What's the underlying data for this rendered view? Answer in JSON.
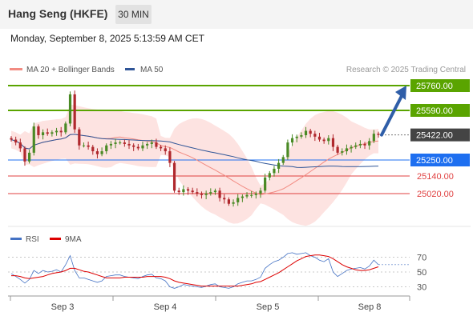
{
  "header": {
    "title": "Hang Seng (HKFE)",
    "timeframe_label": "30 MIN",
    "datetime": "Monday, September 8, 2025 5:13:59 AM CET"
  },
  "chart_data": [
    {
      "type": "line",
      "panel": "price",
      "title": "",
      "x_tick_labels": [
        "Sep 3",
        "Sep 4",
        "Sep 5",
        "Sep 8"
      ],
      "legend": [
        {
          "name": "MA 20 + Bollinger Bands",
          "color": "#f28b82"
        },
        {
          "name": "MA 50",
          "color": "#2f5597"
        }
      ],
      "watermark": "Research © 2025 Trading Central",
      "levels": [
        {
          "value": 25760.0,
          "label": "25760.00",
          "role": "resistance",
          "color": "#5aa400"
        },
        {
          "value": 25590.0,
          "label": "25590.00",
          "role": "resistance",
          "color": "#5aa400"
        },
        {
          "value": 25422.0,
          "label": "25422.00",
          "role": "last-price",
          "color": "#333333"
        },
        {
          "value": 25250.0,
          "label": "25250.00",
          "role": "pivot",
          "color": "#1e6ff0"
        },
        {
          "value": 25140.0,
          "label": "25140.00",
          "role": "support",
          "color": "#e04040"
        },
        {
          "value": 25020.0,
          "label": "25020.00",
          "role": "support",
          "color": "#e04040"
        }
      ],
      "candles_close": [
        25390,
        25370,
        25330,
        25240,
        25300,
        25480,
        25420,
        25440,
        25430,
        25440,
        25450,
        25440,
        25500,
        25700,
        25460,
        25350,
        25350,
        25340,
        25310,
        25290,
        25310,
        25350,
        25360,
        25370,
        25370,
        25360,
        25350,
        25340,
        25330,
        25350,
        25360,
        25370,
        25340,
        25330,
        25310,
        25230,
        25040,
        25030,
        25050,
        25040,
        25030,
        25020,
        25010,
        25020,
        25030,
        25040,
        24990,
        24980,
        24950,
        24960,
        24990,
        25000,
        25010,
        25010,
        25020,
        25040,
        25130,
        25160,
        25190,
        25230,
        25270,
        25370,
        25400,
        25410,
        25420,
        25450,
        25430,
        25410,
        25390,
        25380,
        25400,
        25340,
        25300,
        25310,
        25330,
        25340,
        25350,
        25360,
        25350,
        25380,
        25430,
        25422
      ],
      "arrow_target": 25760.0
    },
    {
      "type": "line",
      "panel": "rsi",
      "legend": [
        {
          "name": "RSI",
          "color": "#4472c4"
        },
        {
          "name": "9MA",
          "color": "#dd0000"
        }
      ],
      "y_tick_labels": [
        "70",
        "50",
        "30"
      ],
      "reference_levels": [
        70,
        50,
        30
      ],
      "rsi": [
        48,
        44,
        40,
        35,
        40,
        52,
        48,
        52,
        50,
        51,
        53,
        50,
        60,
        72,
        52,
        42,
        42,
        40,
        38,
        36,
        38,
        44,
        45,
        46,
        46,
        44,
        43,
        42,
        41,
        44,
        46,
        47,
        42,
        41,
        38,
        30,
        28,
        30,
        33,
        32,
        31,
        30,
        29,
        31,
        33,
        34,
        30,
        29,
        28,
        30,
        34,
        36,
        38,
        38,
        40,
        43,
        55,
        60,
        64,
        66,
        70,
        75,
        76,
        74,
        75,
        76,
        72,
        70,
        66,
        64,
        68,
        50,
        44,
        48,
        52,
        54,
        55,
        56,
        54,
        58,
        66,
        60
      ],
      "ma9": [
        45,
        45,
        44,
        42,
        41,
        42,
        43,
        44,
        46,
        48,
        49,
        50,
        52,
        55,
        55,
        53,
        51,
        50,
        48,
        46,
        44,
        42,
        42,
        42,
        42,
        43,
        43,
        43,
        43,
        43,
        44,
        44,
        44,
        44,
        43,
        41,
        38,
        36,
        35,
        34,
        33,
        32,
        31,
        31,
        31,
        31,
        31,
        31,
        31,
        31,
        31,
        32,
        33,
        34,
        36,
        37,
        40,
        43,
        46,
        49,
        53,
        57,
        61,
        65,
        68,
        71,
        72,
        73,
        73,
        72,
        71,
        68,
        64,
        60,
        57,
        55,
        53,
        52,
        52,
        53,
        55,
        57
      ]
    }
  ]
}
